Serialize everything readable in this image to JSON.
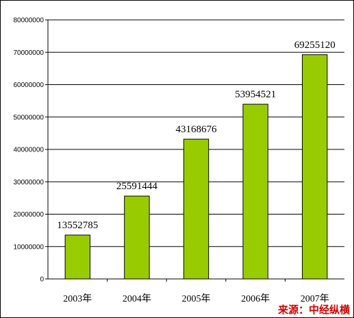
{
  "chart_data": {
    "type": "bar",
    "categories": [
      "2003年",
      "2004年",
      "2005年",
      "2006年",
      "2007年"
    ],
    "values": [
      13552785,
      25591444,
      43168676,
      53954521,
      69255120
    ],
    "data_labels": [
      "13552785",
      "25591444",
      "43168676",
      "53954521",
      "69255120"
    ],
    "yticks": [
      0,
      10000000,
      20000000,
      30000000,
      40000000,
      50000000,
      60000000,
      70000000,
      80000000
    ],
    "ylim": [
      0,
      80000000
    ],
    "grid": true,
    "bar_color": "#99cc00"
  },
  "source_note": "来源：中经纵横"
}
